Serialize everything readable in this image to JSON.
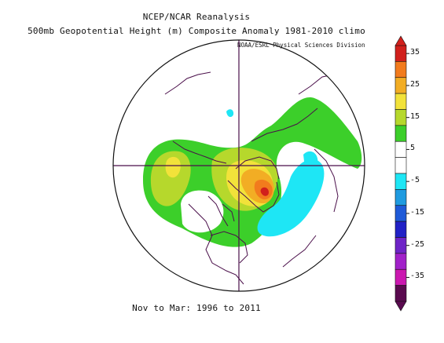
{
  "header": {
    "title": "NCEP/NCAR Reanalysis",
    "subtitle": "500mb Geopotential Height (m) Composite Anomaly 1981-2010 climo",
    "credit": "NOAA/ESRL Physical Sciences Division"
  },
  "footer": {
    "period": "Nov to Mar: 1996 to 2011"
  },
  "map": {
    "projection": "north polar stereographic",
    "outline_color": "#4a0f4a",
    "anomaly_areas": [
      {
        "region": "arctic ocean / north of Greenland",
        "level": "15 to 25",
        "color": "#ffd21a"
      },
      {
        "region": "Baffin Bay / west Greenland",
        "level": "25 to 35",
        "color": "#f0141e"
      },
      {
        "region": "east Siberia / Chukotka",
        "level": "15 to 25",
        "color": "#ffd21a"
      },
      {
        "region": "eastern North America",
        "level": "-15 to -5",
        "color": "#1ee6f5"
      },
      {
        "region": "Siberia",
        "level": "-15 to -5",
        "color": "#1ee6f5"
      },
      {
        "region": "Eurasia belt",
        "level": "5 to 15",
        "color": "#3ccf2a"
      }
    ]
  },
  "colorbar": {
    "tick_labels": [
      "35",
      "25",
      "15",
      "5",
      "-5",
      "-15",
      "-25",
      "-35"
    ],
    "colors": [
      "#d1201c",
      "#f27b1d",
      "#f2ad24",
      "#f2e23a",
      "#b6d82c",
      "#3ccf2a",
      "#ffffff",
      "#ffffff",
      "#1ee6f5",
      "#1f9be0",
      "#1e5ad8",
      "#2121c6",
      "#6e24c7",
      "#a121c9",
      "#cb18b0",
      "#5a0a4f"
    ]
  }
}
